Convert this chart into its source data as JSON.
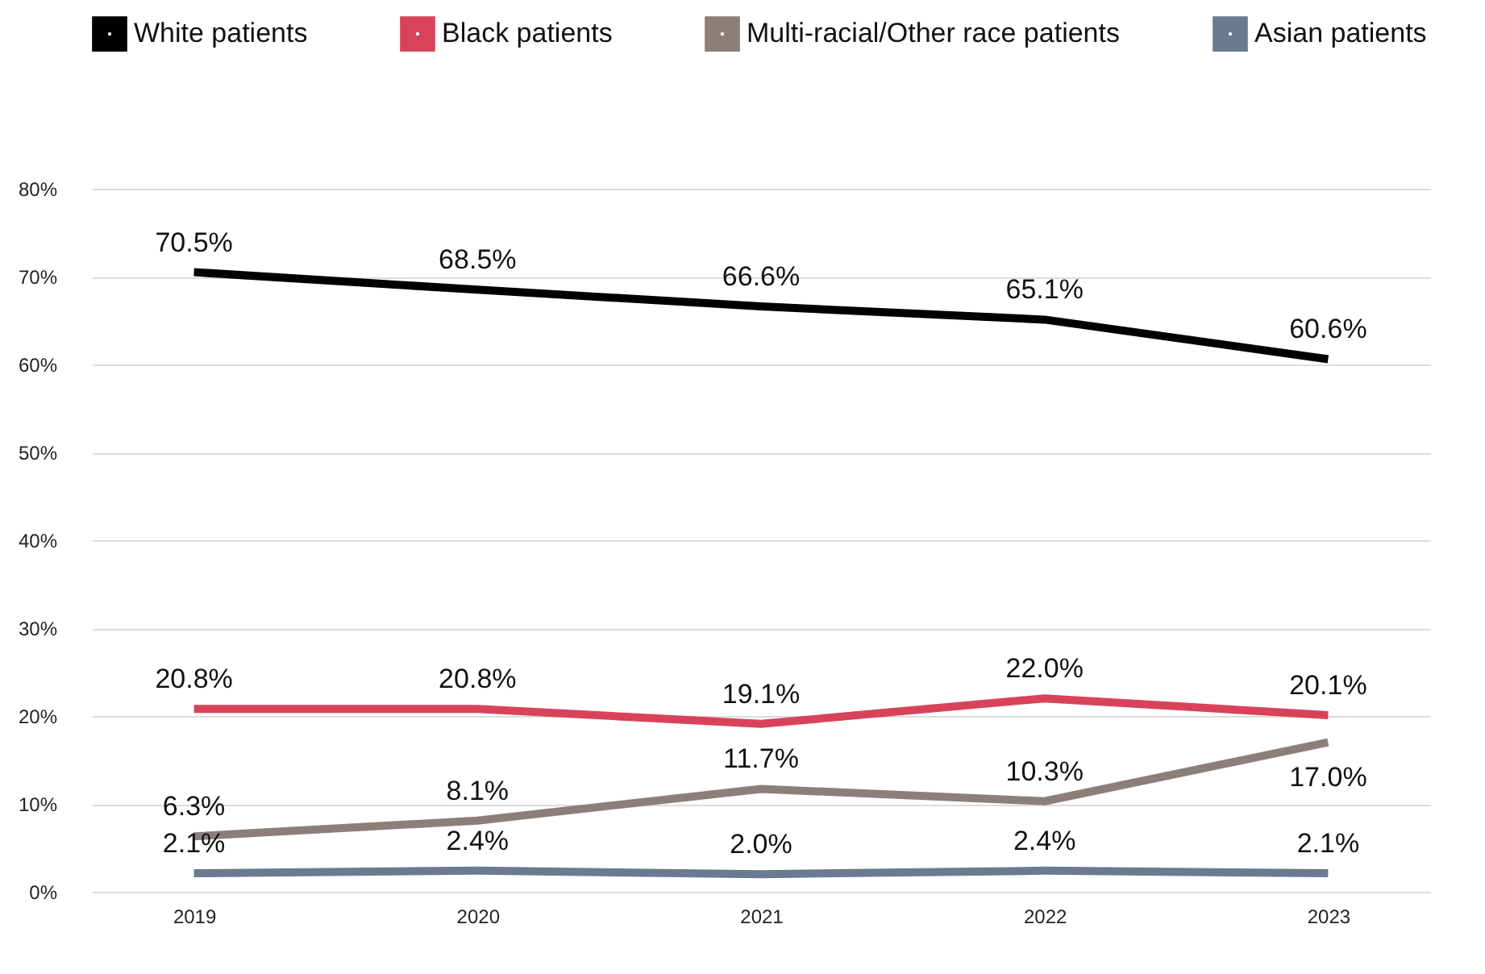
{
  "chart_data": {
    "type": "line",
    "categories": [
      "2019",
      "2020",
      "2021",
      "2022",
      "2023"
    ],
    "series": [
      {
        "name": "White patients",
        "color": "#000000",
        "values": [
          70.5,
          68.5,
          66.6,
          65.1,
          60.6
        ],
        "value_labels": [
          "70.5%",
          "68.5%",
          "66.6%",
          "65.1%",
          "60.6%"
        ]
      },
      {
        "name": "Black patients",
        "color": "#d9435a",
        "values": [
          20.8,
          20.8,
          19.1,
          22.0,
          20.1
        ],
        "value_labels": [
          "20.8%",
          "20.8%",
          "19.1%",
          "22.0%",
          "20.1%"
        ]
      },
      {
        "name": "Multi-racial/Other race patients",
        "color": "#8c7f7a",
        "values": [
          6.3,
          8.1,
          11.7,
          10.3,
          17.0
        ],
        "value_labels": [
          "6.3%",
          "8.1%",
          "11.7%",
          "10.3%",
          "17.0%"
        ]
      },
      {
        "name": "Asian patients",
        "color": "#6b7a90",
        "values": [
          2.1,
          2.4,
          2.0,
          2.4,
          2.1
        ],
        "value_labels": [
          "2.1%",
          "2.4%",
          "2.0%",
          "2.4%",
          "2.1%"
        ]
      }
    ],
    "ylim": [
      0,
      80
    ],
    "yticks": [
      {
        "value": 0,
        "label": "0%"
      },
      {
        "value": 10,
        "label": "10%"
      },
      {
        "value": 20,
        "label": "20%"
      },
      {
        "value": 30,
        "label": "30%"
      },
      {
        "value": 40,
        "label": "40%"
      },
      {
        "value": 50,
        "label": "50%"
      },
      {
        "value": 60,
        "label": "60%"
      },
      {
        "value": 70,
        "label": "70%"
      },
      {
        "value": 80,
        "label": "80%"
      }
    ],
    "grid": "y",
    "legend": "top",
    "marker": "none",
    "line_style": "solid"
  }
}
